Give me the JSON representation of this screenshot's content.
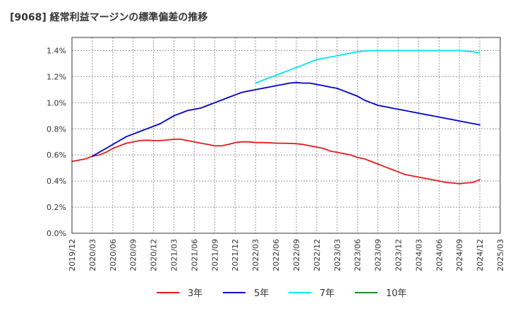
{
  "chart_data": {
    "type": "line",
    "title": "[9068]  経常利益マージンの標準偏差の推移",
    "xlabel": "",
    "ylabel": "",
    "ylim": [
      0,
      0.015
    ],
    "grid": true,
    "legend_position": "bottom",
    "x_ticks": [
      "2019/12",
      "2020/03",
      "2020/06",
      "2020/09",
      "2020/12",
      "2021/03",
      "2021/06",
      "2021/09",
      "2021/12",
      "2022/03",
      "2022/06",
      "2022/09",
      "2022/12",
      "2023/03",
      "2023/06",
      "2023/09",
      "2023/12",
      "2024/03",
      "2024/06",
      "2024/09",
      "2024/12",
      "2025/03"
    ],
    "y_ticks": [
      {
        "value": 0.0,
        "label": "0.0%"
      },
      {
        "value": 0.002,
        "label": "0.2%"
      },
      {
        "value": 0.004,
        "label": "0.4%"
      },
      {
        "value": 0.006,
        "label": "0.6%"
      },
      {
        "value": 0.008,
        "label": "0.8%"
      },
      {
        "value": 0.01,
        "label": "1.0%"
      },
      {
        "value": 0.012,
        "label": "1.2%"
      },
      {
        "value": 0.014,
        "label": "1.4%"
      }
    ],
    "series": [
      {
        "name": "3年",
        "color": "#e41a1c",
        "x": [
          "2019/12",
          "2020/01",
          "2020/02",
          "2020/03",
          "2020/04",
          "2020/05",
          "2020/06",
          "2020/07",
          "2020/08",
          "2020/09",
          "2020/10",
          "2020/11",
          "2020/12",
          "2021/01",
          "2021/02",
          "2021/03",
          "2021/04",
          "2021/05",
          "2021/06",
          "2021/07",
          "2021/08",
          "2021/09",
          "2021/10",
          "2021/11",
          "2021/12",
          "2022/01",
          "2022/02",
          "2022/03",
          "2022/04",
          "2022/05",
          "2022/06",
          "2022/07",
          "2022/08",
          "2022/09",
          "2022/10",
          "2022/11",
          "2022/12",
          "2023/01",
          "2023/02",
          "2023/03",
          "2023/04",
          "2023/05",
          "2023/06",
          "2023/07",
          "2023/08",
          "2023/09",
          "2023/10",
          "2023/11",
          "2023/12",
          "2024/01",
          "2024/02",
          "2024/03",
          "2024/04",
          "2024/05",
          "2024/06",
          "2024/07",
          "2024/08",
          "2024/09",
          "2024/10",
          "2024/11",
          "2024/12"
        ],
        "values": [
          0.0055,
          0.0056,
          0.0057,
          0.0059,
          0.006,
          0.0062,
          0.0065,
          0.0067,
          0.0069,
          0.007,
          0.0071,
          0.00713,
          0.0071,
          0.0071,
          0.00715,
          0.0072,
          0.0072,
          0.0071,
          0.007,
          0.0069,
          0.0068,
          0.0067,
          0.0067,
          0.0068,
          0.00695,
          0.007,
          0.007,
          0.00695,
          0.00695,
          0.00693,
          0.0069,
          0.0069,
          0.00688,
          0.00686,
          0.0068,
          0.0067,
          0.0066,
          0.0065,
          0.0063,
          0.0062,
          0.0061,
          0.006,
          0.0058,
          0.0057,
          0.0055,
          0.0053,
          0.0051,
          0.0049,
          0.0047,
          0.0045,
          0.0044,
          0.0043,
          0.0042,
          0.0041,
          0.004,
          0.0039,
          0.00385,
          0.0038,
          0.00385,
          0.0039,
          0.0041
        ]
      },
      {
        "name": "5年",
        "color": "#0000cc",
        "x": [
          "2020/03",
          "2020/04",
          "2020/05",
          "2020/06",
          "2020/07",
          "2020/08",
          "2020/09",
          "2020/10",
          "2020/11",
          "2020/12",
          "2021/01",
          "2021/02",
          "2021/03",
          "2021/04",
          "2021/05",
          "2021/06",
          "2021/07",
          "2021/08",
          "2021/09",
          "2021/10",
          "2021/11",
          "2021/12",
          "2022/01",
          "2022/02",
          "2022/03",
          "2022/04",
          "2022/05",
          "2022/06",
          "2022/07",
          "2022/08",
          "2022/09",
          "2022/10",
          "2022/11",
          "2022/12",
          "2023/01",
          "2023/02",
          "2023/03",
          "2023/04",
          "2023/05",
          "2023/06",
          "2023/07",
          "2023/08",
          "2023/09",
          "2023/10",
          "2023/11",
          "2023/12",
          "2024/01",
          "2024/02",
          "2024/03",
          "2024/04",
          "2024/05",
          "2024/06",
          "2024/07",
          "2024/08",
          "2024/09",
          "2024/10",
          "2024/11",
          "2024/12"
        ],
        "values": [
          0.0059,
          0.0062,
          0.0065,
          0.0068,
          0.0071,
          0.0074,
          0.0076,
          0.0078,
          0.008,
          0.0082,
          0.0084,
          0.0087,
          0.009,
          0.0092,
          0.0094,
          0.0095,
          0.0096,
          0.0098,
          0.01,
          0.0102,
          0.0104,
          0.0106,
          0.0108,
          0.0109,
          0.011,
          0.0111,
          0.0112,
          0.0113,
          0.0114,
          0.0115,
          0.01155,
          0.0115,
          0.0115,
          0.0114,
          0.0113,
          0.0112,
          0.0111,
          0.0109,
          0.0107,
          0.0105,
          0.0102,
          0.01,
          0.0098,
          0.0097,
          0.0096,
          0.0095,
          0.0094,
          0.0093,
          0.0092,
          0.0091,
          0.009,
          0.0089,
          0.0088,
          0.0087,
          0.0086,
          0.0085,
          0.0084,
          0.0083
        ]
      },
      {
        "name": "7年",
        "color": "#00e5ee",
        "x": [
          "2022/03",
          "2022/04",
          "2022/05",
          "2022/06",
          "2022/07",
          "2022/08",
          "2022/09",
          "2022/10",
          "2022/11",
          "2022/12",
          "2023/01",
          "2023/02",
          "2023/03",
          "2023/04",
          "2023/05",
          "2023/06",
          "2023/07",
          "2023/08",
          "2023/09",
          "2023/10",
          "2023/11",
          "2023/12",
          "2024/01",
          "2024/02",
          "2024/03",
          "2024/04",
          "2024/05",
          "2024/06",
          "2024/07",
          "2024/08",
          "2024/09",
          "2024/10",
          "2024/11",
          "2024/12"
        ],
        "values": [
          0.0115,
          0.0117,
          0.0119,
          0.0121,
          0.0123,
          0.0125,
          0.0127,
          0.0129,
          0.0131,
          0.0133,
          0.0134,
          0.0135,
          0.0136,
          0.0137,
          0.0138,
          0.0139,
          0.01395,
          0.014,
          0.014,
          0.014,
          0.014,
          0.014,
          0.014,
          0.014,
          0.014,
          0.014,
          0.014,
          0.014,
          0.014,
          0.014,
          0.014,
          0.01395,
          0.0139,
          0.0138
        ]
      },
      {
        "name": "10年",
        "color": "#228b22",
        "x": [],
        "values": []
      }
    ]
  }
}
